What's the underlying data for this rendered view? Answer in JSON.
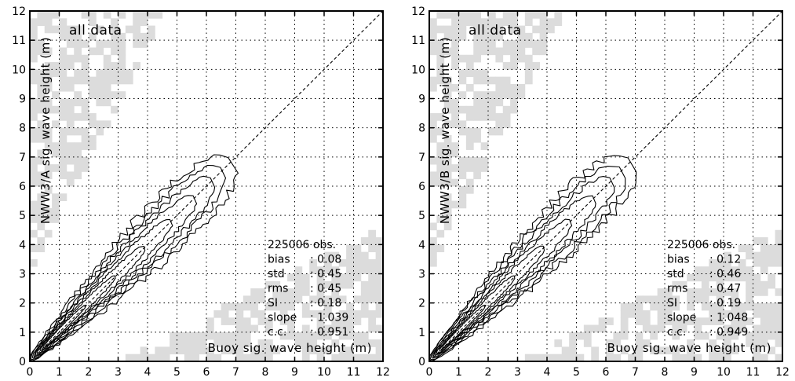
{
  "chart_data": [
    {
      "type": "contour",
      "panel_id": "A",
      "annotation": "all data",
      "xlabel": "Buoy sig. wave height (m)",
      "ylabel": "NWW3/A sig. wave height (m)",
      "xlim": [
        0,
        12
      ],
      "ylim": [
        0,
        12
      ],
      "xticks": [
        "0",
        "1",
        "2",
        "3",
        "4",
        "5",
        "6",
        "7",
        "8",
        "9",
        "10",
        "11",
        "12"
      ],
      "yticks": [
        "0",
        "1",
        "2",
        "3",
        "4",
        "5",
        "6",
        "7",
        "8",
        "9",
        "10",
        "11",
        "12"
      ],
      "grid": true,
      "reference_line": "1:1",
      "stats": [
        {
          "label": "225006 obs.",
          "value": ""
        },
        {
          "label": "bias",
          "value": ": 0.08"
        },
        {
          "label": "std",
          "value": ": 0.45"
        },
        {
          "label": "rms",
          "value": ": 0.45"
        },
        {
          "label": "SI",
          "value": ": 0.18"
        },
        {
          "label": "slope",
          "value": ": 1.039"
        },
        {
          "label": "c.c.",
          "value": ": 0.951"
        }
      ]
    },
    {
      "type": "contour",
      "panel_id": "B",
      "annotation": "all data",
      "xlabel": "Buoy sig. wave height (m)",
      "ylabel": "NWW3/B sig. wave height (m)",
      "xlim": [
        0,
        12
      ],
      "ylim": [
        0,
        12
      ],
      "xticks": [
        "0",
        "1",
        "2",
        "3",
        "4",
        "5",
        "6",
        "7",
        "8",
        "9",
        "10",
        "11",
        "12"
      ],
      "yticks": [
        "0",
        "1",
        "2",
        "3",
        "4",
        "5",
        "6",
        "7",
        "8",
        "9",
        "10",
        "11",
        "12"
      ],
      "grid": true,
      "reference_line": "1:1",
      "stats": [
        {
          "label": "225006 obs.",
          "value": ""
        },
        {
          "label": "bias",
          "value": ": 0.12"
        },
        {
          "label": "std",
          "value": ": 0.46"
        },
        {
          "label": "rms",
          "value": ": 0.47"
        },
        {
          "label": "SI",
          "value": ": 0.19"
        },
        {
          "label": "slope",
          "value": ": 1.048"
        },
        {
          "label": "c.c.",
          "value": ": 0.949"
        }
      ]
    }
  ],
  "colors": {
    "background_cells": "#dcdcdc",
    "lines": "#000000"
  }
}
